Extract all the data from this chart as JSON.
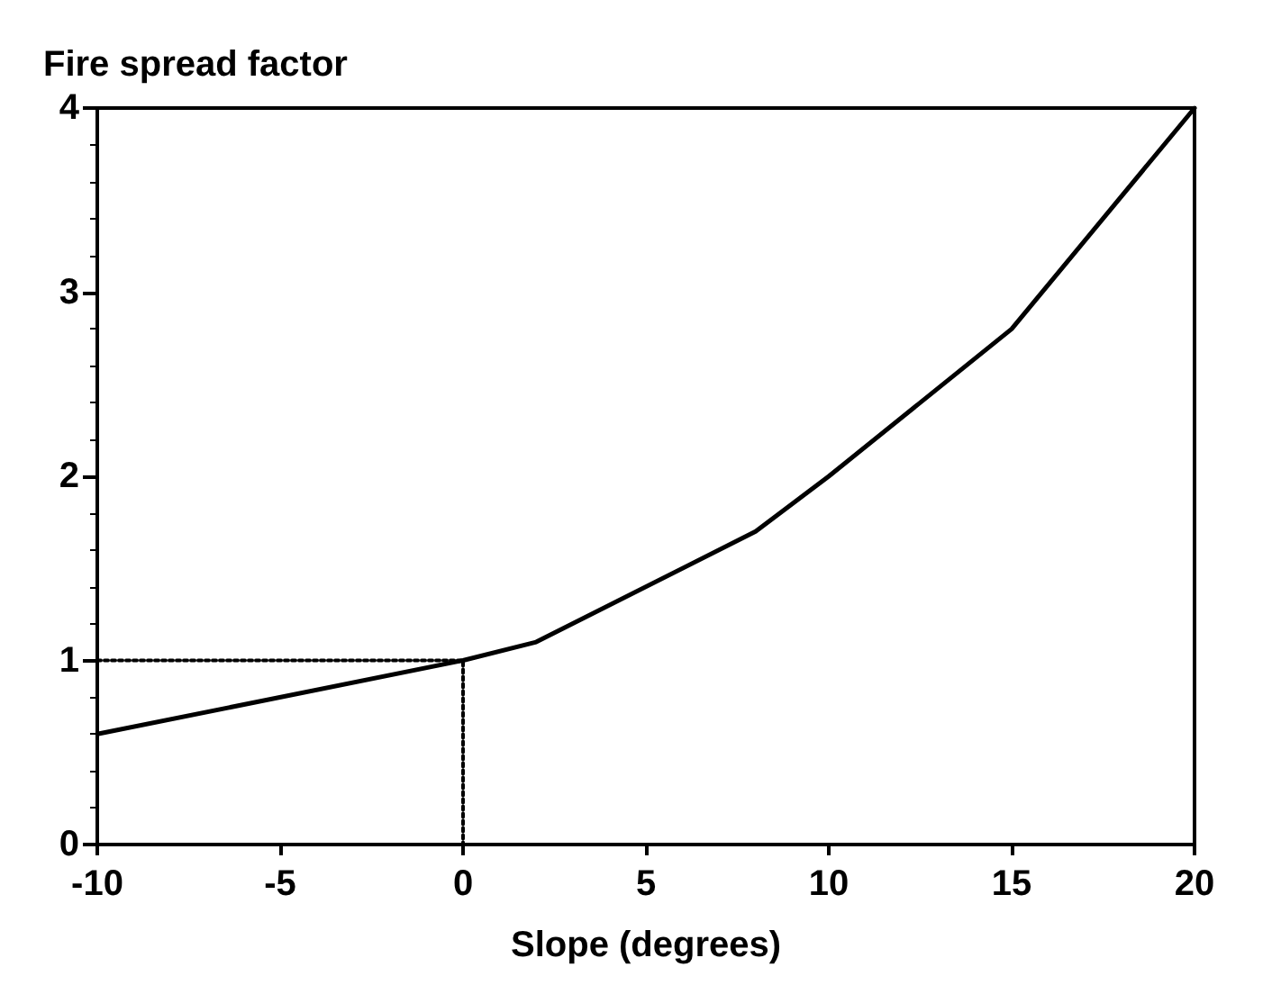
{
  "chart_data": {
    "type": "line",
    "ylabel": "Fire spread factor",
    "xlabel": "Slope (degrees)",
    "xlim": [
      -10,
      20
    ],
    "xticks": [
      -10,
      -5,
      0,
      5,
      10,
      15,
      20
    ],
    "ylim": [
      0,
      4
    ],
    "yticks": [
      0,
      1,
      2,
      3,
      4
    ],
    "grid": false,
    "marker": "none",
    "series": [
      {
        "color": "#000000",
        "x": [
          -10,
          0,
          2,
          8,
          10,
          15,
          20
        ],
        "values": [
          0.6,
          1.0,
          1.1,
          1.7,
          2.0,
          2.8,
          4.0
        ],
        "line_style": "solid"
      },
      {
        "color": "#000000",
        "x": [
          -10,
          0,
          0
        ],
        "values": [
          1,
          1,
          0
        ],
        "line_style": "dotted"
      }
    ]
  }
}
